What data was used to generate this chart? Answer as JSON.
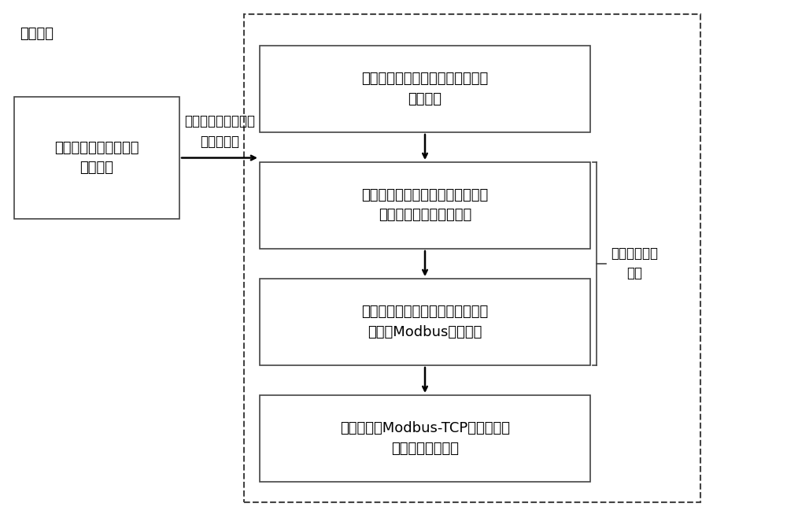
{
  "title": "反馈信息",
  "bg_color": "#ffffff",
  "box1_text": "被监控设备返回对应的\n响应信息",
  "arrow_label": "以现场总线协议形式\n发送数据包",
  "box2_text": "在经过协议转换设备时对响应信息\n进行解析",
  "box3_text": "提取解析后协议帧格式中的字段，\n与数据字典构成映射关系",
  "box4_text": "将得到的数据字段存储到协议转换\n设备的Modbus寄存器中",
  "box5_text": "重新封装成Modbus-TCP协议并返回\n到协议转换系统中",
  "side_label": "协议转换核心\n过程",
  "edge_color": "#444444",
  "font_size": 13
}
